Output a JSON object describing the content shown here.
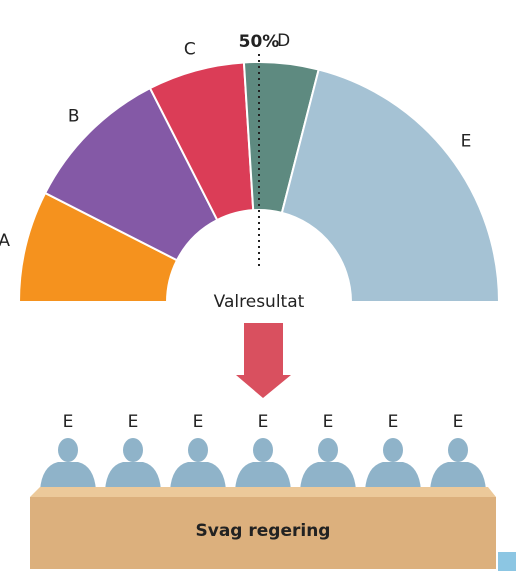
{
  "chart_data": {
    "type": "pie",
    "categories": [
      "A",
      "B",
      "C",
      "D",
      "E"
    ],
    "values": [
      15,
      20,
      13,
      10,
      42
    ],
    "colors": [
      "#f5921e",
      "#8459a6",
      "#db3d57",
      "#5e8a80",
      "#a5c2d4"
    ],
    "center_label": "Valresultat",
    "marker": {
      "value": 50,
      "label": "50%"
    },
    "members": [
      "E",
      "E",
      "E",
      "E",
      "E",
      "E",
      "E"
    ],
    "table_label": "Svag regering"
  }
}
